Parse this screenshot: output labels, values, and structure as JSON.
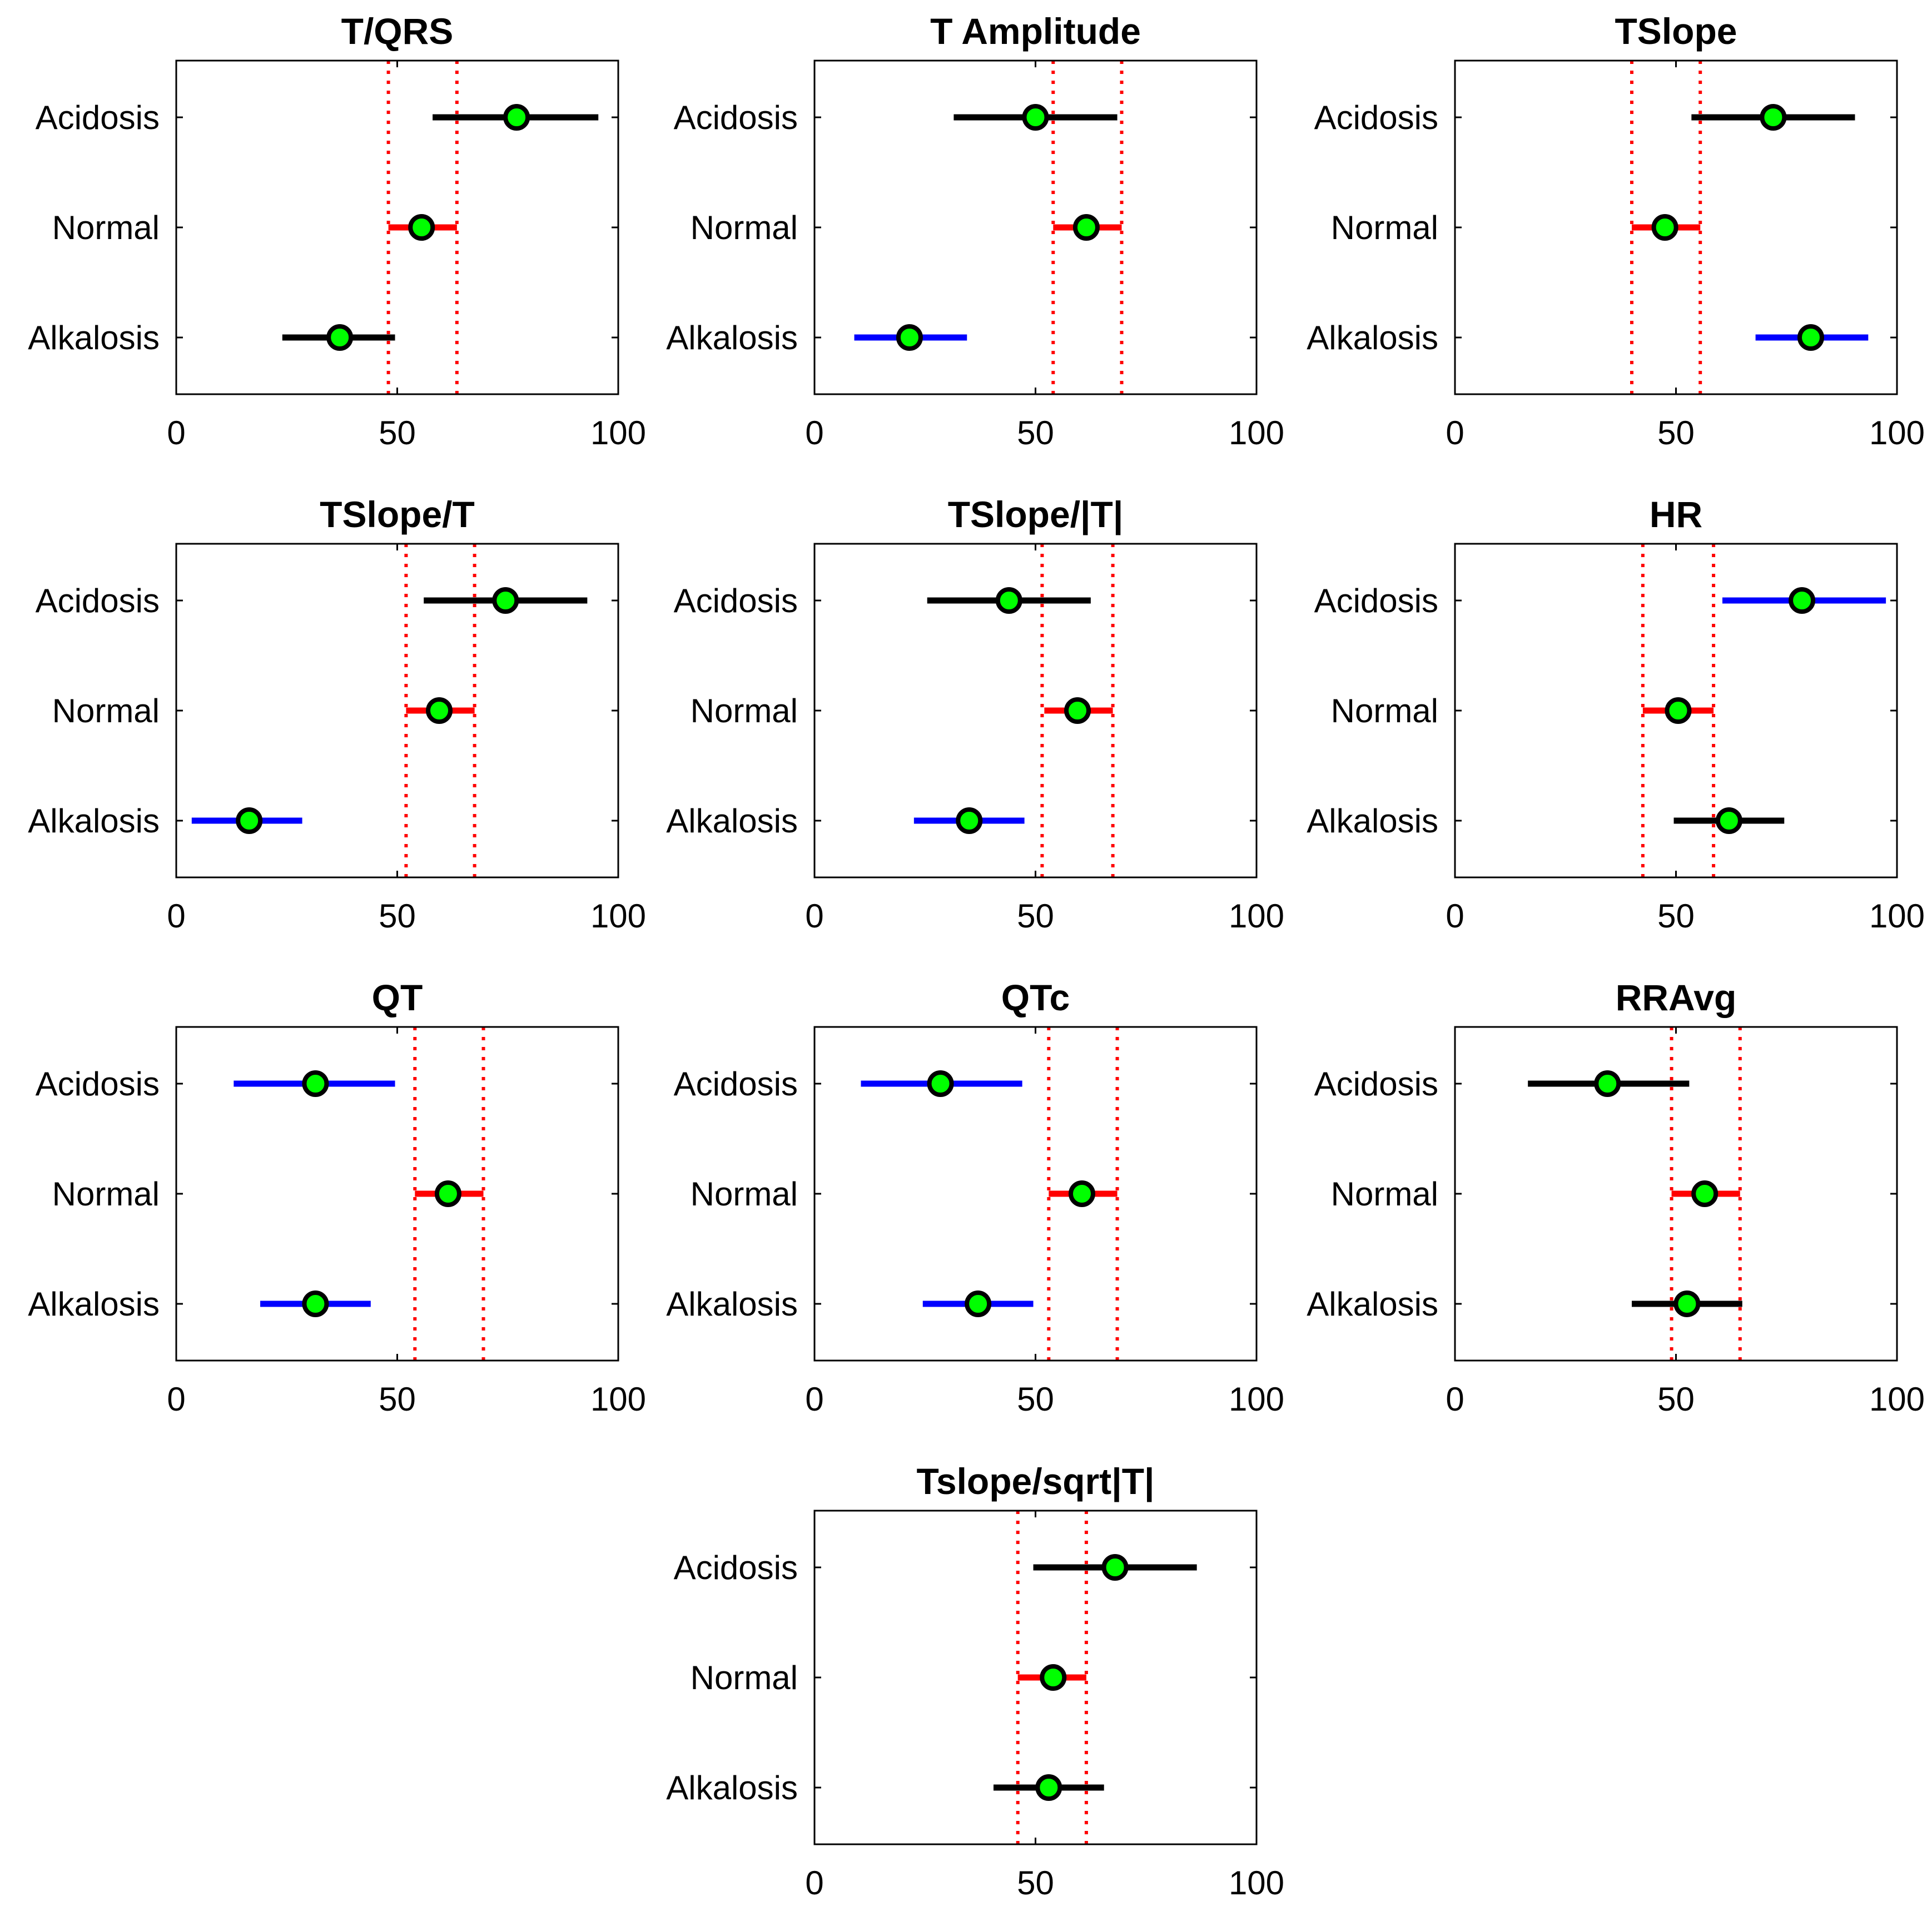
{
  "chart_data": [
    {
      "type": "errorbar",
      "title": "T/QRS",
      "xlim": [
        0,
        100
      ],
      "xticks": [
        "0",
        "50",
        "100"
      ],
      "categories": [
        "Acidosis",
        "Normal",
        "Alkalosis"
      ],
      "reference_lines": [
        48,
        63.5
      ],
      "reference_line_color": "#ff0000",
      "series": [
        {
          "name": "Acidosis",
          "center": 77,
          "low": 58,
          "high": 95.5,
          "color": "#000000"
        },
        {
          "name": "Normal",
          "center": 55.5,
          "low": 48,
          "high": 63.5,
          "color": "#ff0000"
        },
        {
          "name": "Alkalosis",
          "center": 37,
          "low": 24,
          "high": 49.5,
          "color": "#000000"
        }
      ]
    },
    {
      "type": "errorbar",
      "title": "T Amplitude",
      "xlim": [
        0,
        100
      ],
      "xticks": [
        "0",
        "50",
        "100"
      ],
      "categories": [
        "Acidosis",
        "Normal",
        "Alkalosis"
      ],
      "reference_lines": [
        54,
        69.5
      ],
      "reference_line_color": "#ff0000",
      "series": [
        {
          "name": "Acidosis",
          "center": 50,
          "low": 31.5,
          "high": 68.5,
          "color": "#000000"
        },
        {
          "name": "Normal",
          "center": 61.5,
          "low": 54,
          "high": 69.5,
          "color": "#ff0000"
        },
        {
          "name": "Alkalosis",
          "center": 21.5,
          "low": 9,
          "high": 34.5,
          "color": "#0000ff"
        }
      ]
    },
    {
      "type": "errorbar",
      "title": "TSlope",
      "xlim": [
        0,
        100
      ],
      "xticks": [
        "0",
        "50",
        "100"
      ],
      "categories": [
        "Acidosis",
        "Normal",
        "Alkalosis"
      ],
      "reference_lines": [
        40,
        55.5
      ],
      "reference_line_color": "#ff0000",
      "series": [
        {
          "name": "Acidosis",
          "center": 72,
          "low": 53.5,
          "high": 90.5,
          "color": "#000000"
        },
        {
          "name": "Normal",
          "center": 47.5,
          "low": 40,
          "high": 55.5,
          "color": "#ff0000"
        },
        {
          "name": "Alkalosis",
          "center": 80.5,
          "low": 68,
          "high": 93.5,
          "color": "#0000ff"
        }
      ]
    },
    {
      "type": "errorbar",
      "title": "TSlope/T",
      "xlim": [
        0,
        100
      ],
      "xticks": [
        "0",
        "50",
        "100"
      ],
      "categories": [
        "Acidosis",
        "Normal",
        "Alkalosis"
      ],
      "reference_lines": [
        52,
        67.5
      ],
      "reference_line_color": "#ff0000",
      "series": [
        {
          "name": "Acidosis",
          "center": 74.5,
          "low": 56,
          "high": 93,
          "color": "#000000"
        },
        {
          "name": "Normal",
          "center": 59.5,
          "low": 52,
          "high": 67.5,
          "color": "#ff0000"
        },
        {
          "name": "Alkalosis",
          "center": 16.5,
          "low": 3.5,
          "high": 28.5,
          "color": "#0000ff"
        }
      ]
    },
    {
      "type": "errorbar",
      "title": "TSlope/|T|",
      "xlim": [
        0,
        100
      ],
      "xticks": [
        "0",
        "50",
        "100"
      ],
      "categories": [
        "Acidosis",
        "Normal",
        "Alkalosis"
      ],
      "reference_lines": [
        51.5,
        67.5
      ],
      "reference_line_color": "#ff0000",
      "series": [
        {
          "name": "Acidosis",
          "center": 44,
          "low": 25.5,
          "high": 62.5,
          "color": "#000000"
        },
        {
          "name": "Normal",
          "center": 59.5,
          "low": 52,
          "high": 67.5,
          "color": "#ff0000"
        },
        {
          "name": "Alkalosis",
          "center": 35,
          "low": 22.5,
          "high": 47.5,
          "color": "#0000ff"
        }
      ]
    },
    {
      "type": "errorbar",
      "title": "HR",
      "xlim": [
        0,
        100
      ],
      "xticks": [
        "0",
        "50",
        "100"
      ],
      "categories": [
        "Acidosis",
        "Normal",
        "Alkalosis"
      ],
      "reference_lines": [
        42.5,
        58.5
      ],
      "reference_line_color": "#ff0000",
      "series": [
        {
          "name": "Acidosis",
          "center": 78.5,
          "low": 60.5,
          "high": 97.5,
          "color": "#0000ff"
        },
        {
          "name": "Normal",
          "center": 50.5,
          "low": 42.5,
          "high": 58.5,
          "color": "#ff0000"
        },
        {
          "name": "Alkalosis",
          "center": 62,
          "low": 49.5,
          "high": 74.5,
          "color": "#000000"
        }
      ]
    },
    {
      "type": "errorbar",
      "title": "QT",
      "xlim": [
        0,
        100
      ],
      "xticks": [
        "0",
        "50",
        "100"
      ],
      "categories": [
        "Acidosis",
        "Normal",
        "Alkalosis"
      ],
      "reference_lines": [
        54,
        69.5
      ],
      "reference_line_color": "#ff0000",
      "series": [
        {
          "name": "Acidosis",
          "center": 31.5,
          "low": 13,
          "high": 49.5,
          "color": "#0000ff"
        },
        {
          "name": "Normal",
          "center": 61.5,
          "low": 54,
          "high": 69.5,
          "color": "#ff0000"
        },
        {
          "name": "Alkalosis",
          "center": 31.5,
          "low": 19,
          "high": 44,
          "color": "#0000ff"
        }
      ]
    },
    {
      "type": "errorbar",
      "title": "QTc",
      "xlim": [
        0,
        100
      ],
      "xticks": [
        "0",
        "50",
        "100"
      ],
      "categories": [
        "Acidosis",
        "Normal",
        "Alkalosis"
      ],
      "reference_lines": [
        53,
        68.5
      ],
      "reference_line_color": "#ff0000",
      "series": [
        {
          "name": "Acidosis",
          "center": 28.5,
          "low": 10.5,
          "high": 47,
          "color": "#0000ff"
        },
        {
          "name": "Normal",
          "center": 60.5,
          "low": 53,
          "high": 68.5,
          "color": "#ff0000"
        },
        {
          "name": "Alkalosis",
          "center": 37,
          "low": 24.5,
          "high": 49.5,
          "color": "#0000ff"
        }
      ]
    },
    {
      "type": "errorbar",
      "title": "RRAvg",
      "xlim": [
        0,
        100
      ],
      "xticks": [
        "0",
        "50",
        "100"
      ],
      "categories": [
        "Acidosis",
        "Normal",
        "Alkalosis"
      ],
      "reference_lines": [
        49,
        64.5
      ],
      "reference_line_color": "#ff0000",
      "series": [
        {
          "name": "Acidosis",
          "center": 34.5,
          "low": 16.5,
          "high": 53,
          "color": "#000000"
        },
        {
          "name": "Normal",
          "center": 56.5,
          "low": 49,
          "high": 64.5,
          "color": "#ff0000"
        },
        {
          "name": "Alkalosis",
          "center": 52.5,
          "low": 40,
          "high": 65,
          "color": "#000000"
        }
      ]
    },
    {
      "type": "errorbar",
      "title": "Tslope/sqrt|T|",
      "xlim": [
        0,
        100
      ],
      "xticks": [
        "0",
        "50",
        "100"
      ],
      "categories": [
        "Acidosis",
        "Normal",
        "Alkalosis"
      ],
      "reference_lines": [
        46,
        61.5
      ],
      "reference_line_color": "#ff0000",
      "series": [
        {
          "name": "Acidosis",
          "center": 68,
          "low": 49.5,
          "high": 86.5,
          "color": "#000000"
        },
        {
          "name": "Normal",
          "center": 54,
          "low": 46,
          "high": 61.5,
          "color": "#ff0000"
        },
        {
          "name": "Alkalosis",
          "center": 53,
          "low": 40.5,
          "high": 65.5,
          "color": "#000000"
        }
      ]
    }
  ],
  "style": {
    "marker_fill": "#00ff00",
    "marker_edge": "#000000",
    "axis_color": "#000000"
  }
}
